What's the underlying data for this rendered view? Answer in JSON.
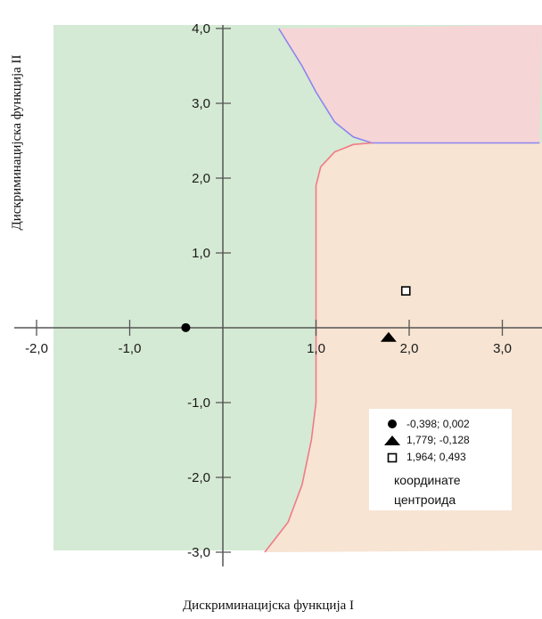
{
  "chart_data": {
    "type": "scatter",
    "title": "",
    "xlabel": "Дискриминацијска функција I",
    "ylabel": "Дискриминацијска функција II",
    "xlim": [
      -2.0,
      3.0
    ],
    "ylim": [
      -3.0,
      4.0
    ],
    "x_ticks": [
      -2.0,
      -1.0,
      1.0,
      2.0,
      3.0
    ],
    "x_tick_labels": [
      "-2,0",
      "-1,0",
      "1,0",
      "2,0",
      "3,0"
    ],
    "y_ticks": [
      4.0,
      3.0,
      2.0,
      1.0,
      -1.0,
      -2.0,
      -3.0
    ],
    "y_tick_labels": [
      "4,0",
      "3,0",
      "2,0",
      "1,0",
      "-1,0",
      "-2,0",
      "-3,0"
    ],
    "grid": false,
    "legend_position": "bottom-right",
    "regions": [
      {
        "name": "left",
        "color": "#d5ead4"
      },
      {
        "name": "top-right",
        "color": "#f6d5d6"
      },
      {
        "name": "bottom-right",
        "color": "#f7e4d3"
      }
    ],
    "boundaries": [
      {
        "color": "#8a85ee",
        "points": [
          [
            0.6,
            4.0
          ],
          [
            0.85,
            3.5
          ],
          [
            1.0,
            3.15
          ],
          [
            1.2,
            2.75
          ],
          [
            1.4,
            2.55
          ],
          [
            1.6,
            2.47
          ],
          [
            3.4,
            2.47
          ]
        ]
      },
      {
        "color": "#f07a86",
        "points": [
          [
            1.6,
            2.47
          ],
          [
            1.4,
            2.45
          ],
          [
            1.2,
            2.35
          ],
          [
            1.05,
            2.15
          ],
          [
            1.0,
            1.9
          ],
          [
            1.0,
            -1.0
          ],
          [
            0.95,
            -1.5
          ],
          [
            0.85,
            -2.1
          ],
          [
            0.7,
            -2.6
          ],
          [
            0.45,
            -3.0
          ]
        ]
      }
    ],
    "series": [
      {
        "marker": "circle",
        "points": [
          [
            -0.398,
            0.002
          ]
        ]
      },
      {
        "marker": "triangle",
        "points": [
          [
            1.779,
            -0.128
          ]
        ]
      },
      {
        "marker": "square",
        "points": [
          [
            1.964,
            0.493
          ]
        ]
      }
    ],
    "legend": {
      "entries": [
        {
          "marker": "circle",
          "label": "-0,398; 0,002"
        },
        {
          "marker": "triangle",
          "label": "1,779; -0,128"
        },
        {
          "marker": "square",
          "label": "1,964; 0,493"
        }
      ],
      "caption_line1": "координате",
      "caption_line2": "центроида"
    }
  }
}
